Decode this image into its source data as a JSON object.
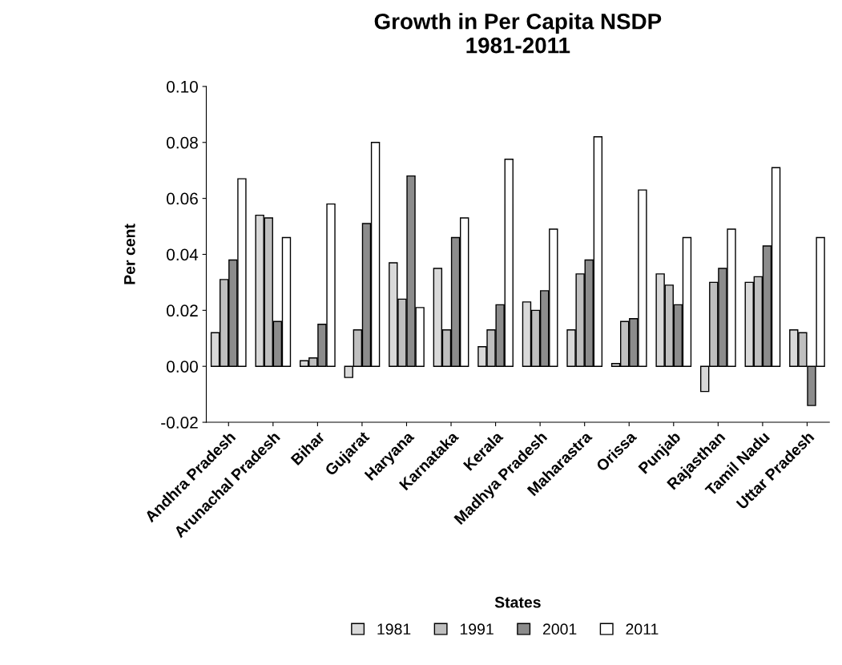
{
  "chart_data": {
    "type": "bar",
    "title": "Growth in Per Capita NSDP\n1981-2011",
    "xlabel": "States",
    "ylabel": "Per cent",
    "categories": [
      "Andhra Pradesh",
      "Arunachal Pradesh",
      "Bihar",
      "Gujarat",
      "Haryana",
      "Karnataka",
      "Kerala",
      "Madhya Pradesh",
      "Maharastra",
      "Orissa",
      "Punjab",
      "Rajasthan",
      "Tamil Nadu",
      "Uttar Pradesh"
    ],
    "series": [
      {
        "name": "1981",
        "color": "#d9d9d9",
        "values": [
          0.012,
          0.054,
          0.002,
          -0.004,
          0.037,
          0.035,
          0.007,
          0.023,
          0.013,
          0.001,
          0.033,
          -0.009,
          0.03,
          0.013
        ]
      },
      {
        "name": "1991",
        "color": "#bfbfbf",
        "values": [
          0.031,
          0.053,
          0.003,
          0.013,
          0.024,
          0.013,
          0.013,
          0.02,
          0.033,
          0.016,
          0.029,
          0.03,
          0.032,
          0.012
        ]
      },
      {
        "name": "2001",
        "color": "#8c8c8c",
        "values": [
          0.038,
          0.016,
          0.015,
          0.051,
          0.068,
          0.046,
          0.022,
          0.027,
          0.038,
          0.017,
          0.022,
          0.035,
          0.043,
          -0.014
        ]
      },
      {
        "name": "2011",
        "color": "#ffffff",
        "values": [
          0.067,
          0.046,
          0.058,
          0.08,
          0.021,
          0.053,
          0.074,
          0.049,
          0.082,
          0.063,
          0.046,
          0.049,
          0.071,
          0.046
        ]
      }
    ],
    "ylim": [
      -0.02,
      0.1
    ],
    "yticks": [
      {
        "value": -0.02,
        "label": "-0.02"
      },
      {
        "value": 0,
        "label": "0.00"
      },
      {
        "value": 0.02,
        "label": "0.02"
      },
      {
        "value": 0.04,
        "label": "0.04"
      },
      {
        "value": 0.06,
        "label": "0.06"
      },
      {
        "value": 0.08,
        "label": "0.08"
      },
      {
        "value": 0.1,
        "label": "0.10"
      }
    ],
    "legend": "bottom",
    "grid": false
  }
}
